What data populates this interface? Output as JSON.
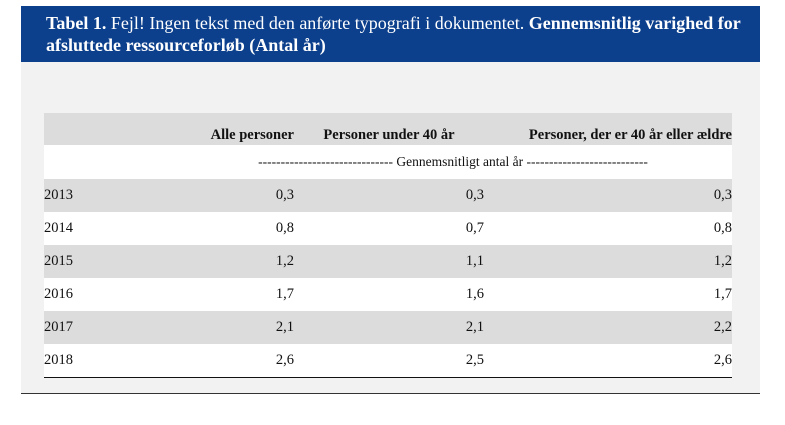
{
  "table": {
    "label": "Tabel 1.",
    "caption_error": "Fejl! Ingen tekst med den anførte typografi i dokumentet.",
    "caption_title": "Gennemsnitlig varighed for afsluttede ressourceforløb (Antal år)",
    "columns": [
      "",
      "Alle personer",
      "Personer under 40 år",
      "Personer, der er 40 år eller ældre"
    ],
    "unit_row": "------------------------------ Gennemsnitligt antal år ---------------------------",
    "rows": [
      {
        "year": "2013",
        "all": "0,3",
        "under40": "0,3",
        "over40": "0,3"
      },
      {
        "year": "2014",
        "all": "0,8",
        "under40": "0,7",
        "over40": "0,8"
      },
      {
        "year": "2015",
        "all": "1,2",
        "under40": "1,1",
        "over40": "1,2"
      },
      {
        "year": "2016",
        "all": "1,7",
        "under40": "1,6",
        "over40": "1,7"
      },
      {
        "year": "2017",
        "all": "2,1",
        "under40": "2,1",
        "over40": "2,2"
      },
      {
        "year": "2018",
        "all": "2,6",
        "under40": "2,5",
        "over40": "2,6"
      }
    ]
  },
  "colors": {
    "header_bg": "#0c3f8c",
    "panel_bg": "#f2f2f2",
    "row_shade": "#dcdcdc"
  }
}
